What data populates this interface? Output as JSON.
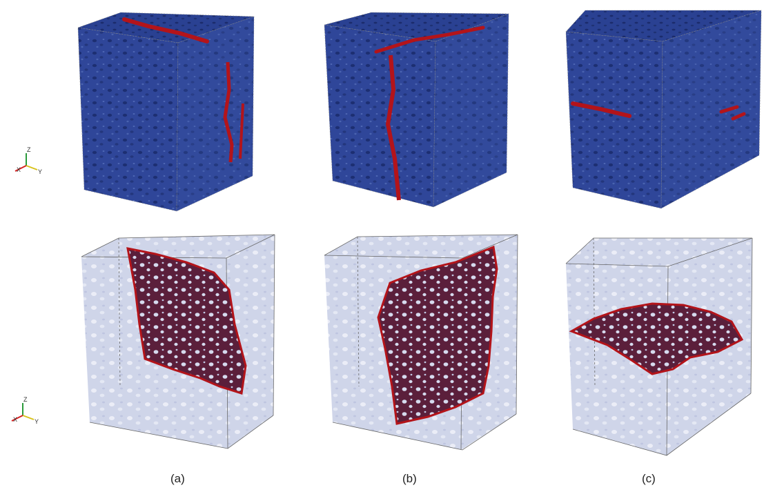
{
  "figure": {
    "panels": [
      {
        "label": "(a)",
        "crack_orientation": "vertical (x-z plane)"
      },
      {
        "label": "(b)",
        "crack_orientation": "vertical (y-z plane)"
      },
      {
        "label": "(c)",
        "crack_orientation": "horizontal (x-y plane)"
      }
    ],
    "rows": [
      "solid cube colored by damage",
      "semi-transparent cube showing crack surface"
    ],
    "axes_triad": {
      "x": "X",
      "y": "Y",
      "z": "Z"
    },
    "colors": {
      "matrix_blue": "#2d4496",
      "matrix_dark": "#1f357f",
      "crack_red": "#b3141a",
      "crack_dark": "#5a1f3a",
      "ghost_fill": "#c6cde6",
      "edge": "#777777",
      "x_axis": "#d42020",
      "y_axis": "#d8c21a",
      "z_axis": "#2a9a3a"
    }
  }
}
